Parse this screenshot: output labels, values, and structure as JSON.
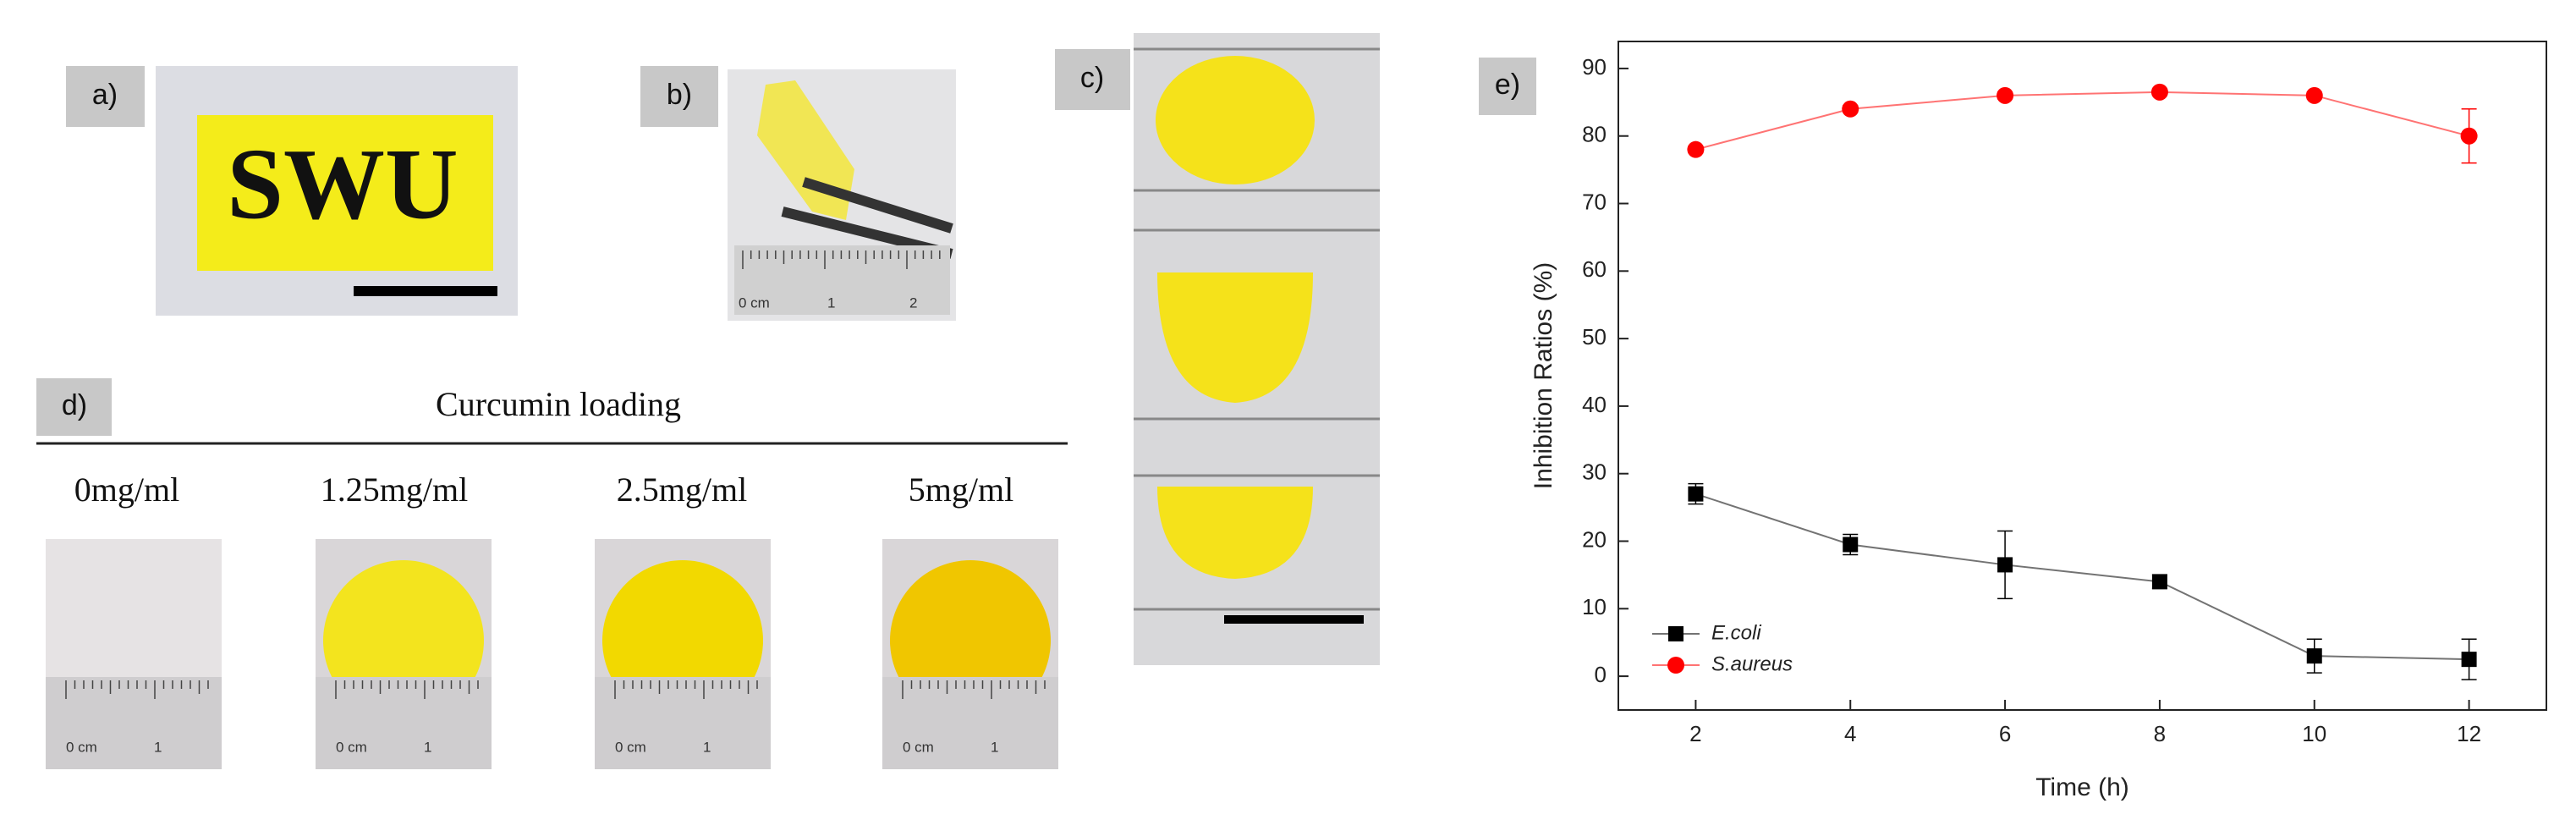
{
  "panels": {
    "a": {
      "label": "a)",
      "text": "SWU"
    },
    "b": {
      "label": "b)",
      "ruler_labels": [
        "0 cm",
        "1",
        "2"
      ]
    },
    "c": {
      "label": "c)"
    },
    "d": {
      "label": "d)",
      "title": "Curcumin loading",
      "samples": [
        {
          "label": "0mg/ml",
          "ruler_labels": [
            "0 cm",
            "1"
          ]
        },
        {
          "label": "1.25mg/ml",
          "ruler_labels": [
            "0 cm",
            "1"
          ]
        },
        {
          "label": "2.5mg/ml",
          "ruler_labels": [
            "0 cm",
            "1"
          ]
        },
        {
          "label": "5mg/ml",
          "ruler_labels": [
            "0 cm",
            "1"
          ]
        }
      ]
    },
    "e": {
      "label": "e)"
    }
  },
  "chart_data": {
    "type": "line",
    "x_label": "Time (h)",
    "y_label": "Inhibition Ratios (%)",
    "x": [
      2,
      4,
      6,
      8,
      10,
      12
    ],
    "xlim": [
      1,
      13
    ],
    "xticks": [
      2,
      4,
      6,
      8,
      10,
      12
    ],
    "ylim": [
      -5,
      94
    ],
    "yticks": [
      0,
      10,
      20,
      30,
      40,
      50,
      60,
      70,
      80,
      90
    ],
    "legend": "lower left",
    "series": [
      {
        "name": "E.coli",
        "color": "#000000",
        "marker": "square",
        "values": [
          27,
          19.5,
          16.5,
          14,
          3,
          2.5
        ],
        "errors": [
          1.5,
          1.5,
          5,
          1,
          2.5,
          3
        ]
      },
      {
        "name": "S.aureus",
        "color": "#ff0000",
        "marker": "circle",
        "values": [
          78,
          84,
          86,
          86.5,
          86,
          80
        ],
        "errors": [
          0.5,
          0.5,
          0.5,
          0.5,
          0.5,
          4
        ]
      }
    ]
  }
}
